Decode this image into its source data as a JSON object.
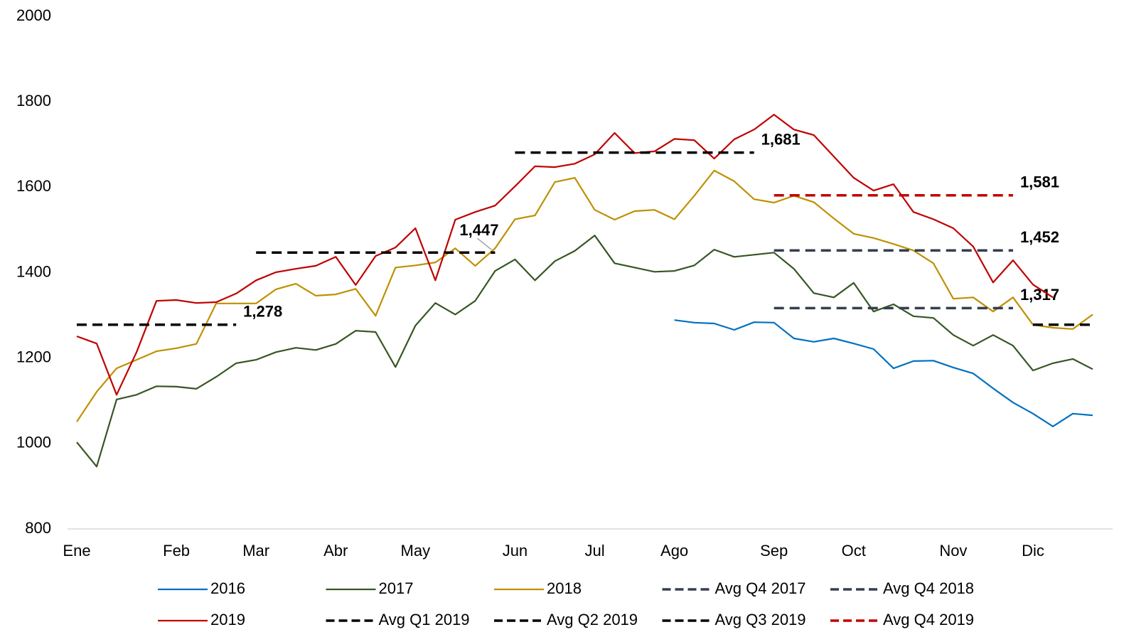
{
  "chart_data": {
    "type": "line",
    "categories": [
      "Ene",
      null,
      null,
      null,
      null,
      "Feb",
      null,
      null,
      null,
      "Mar",
      null,
      null,
      null,
      "Abr",
      null,
      null,
      null,
      "May",
      null,
      null,
      null,
      null,
      "Jun",
      null,
      null,
      null,
      "Jul",
      null,
      null,
      null,
      "Ago",
      null,
      null,
      null,
      null,
      "Sep",
      null,
      null,
      null,
      "Oct",
      null,
      null,
      null,
      null,
      "Nov",
      null,
      null,
      null,
      "Dic",
      null,
      null,
      null
    ],
    "ylim": [
      800,
      2000
    ],
    "yticks": [
      800,
      1000,
      1200,
      1400,
      1600,
      1800,
      2000
    ],
    "grid": false,
    "legend": "bottom",
    "series": [
      {
        "name": "2016",
        "color": "#0070c0",
        "values": [
          null,
          null,
          null,
          null,
          null,
          null,
          null,
          null,
          null,
          null,
          null,
          null,
          null,
          null,
          null,
          null,
          null,
          null,
          null,
          null,
          null,
          null,
          null,
          null,
          null,
          null,
          null,
          null,
          null,
          null,
          1289,
          1283,
          1281,
          1266,
          1284,
          1283,
          1246,
          1238,
          1246,
          1234,
          1221,
          1176,
          1193,
          1194,
          1178,
          1164,
          1129,
          1096,
          1070,
          1040,
          1070,
          1066
        ]
      },
      {
        "name": "2017",
        "color": "#375623",
        "values": [
          1003,
          946,
          1103,
          1114,
          1134,
          1133,
          1128,
          1156,
          1188,
          1196,
          1214,
          1224,
          1219,
          1233,
          1264,
          1261,
          1179,
          1276,
          1329,
          1302,
          1334,
          1404,
          1431,
          1382,
          1427,
          1451,
          1487,
          1422,
          1412,
          1402,
          1404,
          1417,
          1454,
          1437,
          1442,
          1447,
          1409,
          1352,
          1342,
          1376,
          1309,
          1326,
          1298,
          1294,
          1254,
          1229,
          1254,
          1229,
          1171,
          1188,
          1198,
          1174
        ]
      },
      {
        "name": "2018",
        "color": "#bf9000",
        "values": [
          1051,
          1121,
          1176,
          1196,
          1216,
          1223,
          1233,
          1328,
          1328,
          1328,
          1361,
          1374,
          1346,
          1349,
          1362,
          1299,
          1412,
          1417,
          1424,
          1457,
          1416,
          1457,
          1525,
          1534,
          1612,
          1622,
          1547,
          1524,
          1544,
          1547,
          1525,
          1580,
          1639,
          1614,
          1572,
          1564,
          1580,
          1565,
          1527,
          1491,
          1481,
          1467,
          1452,
          1422,
          1339,
          1342,
          1309,
          1342,
          1278,
          1271,
          1268,
          1302
        ]
      },
      {
        "name": "Avg Q4 2017",
        "color": "#333f50",
        "dashed": true,
        "value": 1317,
        "value_label": "1,317",
        "spans": [
          [
            35,
            47
          ]
        ]
      },
      {
        "name": "Avg Q4 2018",
        "color": "#333f50",
        "dashed": true,
        "value": 1452,
        "value_label": "1,452",
        "spans": [
          [
            35,
            47
          ]
        ]
      },
      {
        "name": "2019",
        "color": "#c00000",
        "values": [
          1251,
          1234,
          1114,
          1214,
          1334,
          1336,
          1329,
          1331,
          1351,
          1382,
          1401,
          1409,
          1416,
          1437,
          1371,
          1439,
          1459,
          1504,
          1382,
          1524,
          1542,
          1557,
          1602,
          1649,
          1647,
          1655,
          1677,
          1727,
          1680,
          1684,
          1713,
          1710,
          1667,
          1712,
          1735,
          1770,
          1735,
          1722,
          1672,
          1622,
          1592,
          1607,
          1542,
          1525,
          1504,
          1461,
          1377,
          1429,
          1372,
          1342,
          null,
          null
        ]
      },
      {
        "name": "Avg Q1 2019",
        "color": "#000000",
        "dashed": true,
        "value": 1278,
        "value_label": "1,278",
        "spans": [
          [
            0,
            8
          ],
          [
            48,
            51
          ]
        ]
      },
      {
        "name": "Avg Q2 2019",
        "color": "#000000",
        "dashed": true,
        "value": 1447,
        "value_label": "1,447",
        "spans": [
          [
            9,
            21
          ]
        ]
      },
      {
        "name": "Avg Q3 2019",
        "color": "#000000",
        "dashed": true,
        "value": 1681,
        "value_label": "1,681",
        "spans": [
          [
            22,
            34
          ]
        ]
      },
      {
        "name": "Avg Q4 2019",
        "color": "#c00000",
        "dashed": true,
        "value": 1581,
        "value_label": "1,581",
        "spans": [
          [
            35,
            47
          ]
        ]
      }
    ]
  }
}
